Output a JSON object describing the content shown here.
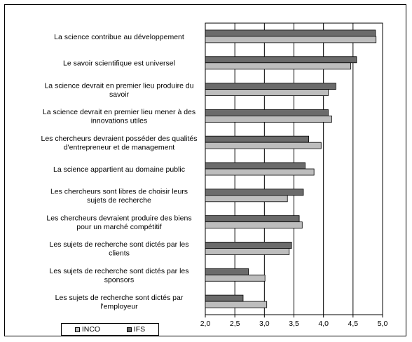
{
  "chart_data": {
    "type": "bar",
    "orientation": "horizontal",
    "categories": [
      "La science contribue au développement",
      "Le savoir scientifique est universel",
      "La science devrait en premier lieu produire du savoir",
      "La science devrait en premier lieu mener à des innovations utiles",
      "Les chercheurs devraient posséder des qualités d'entrepreneur et de management",
      "La science appartient au domaine public",
      "Les chercheurs sont libres de choisir leurs sujets de recherche",
      "Les chercheurs devraient produire des biens pour un marché compétitif",
      "Les sujets de recherche sont dictés par les clients",
      "Les sujets de recherche sont dictés par les sponsors",
      "Les sujets de recherche sont dictés par l'employeur"
    ],
    "category_lines": [
      [
        "La science contribue au développement"
      ],
      [
        "Le savoir scientifique est universel"
      ],
      [
        "La science devrait en premier lieu produire du",
        "savoir"
      ],
      [
        "La science devrait en premier lieu mener à des",
        "innovations utiles"
      ],
      [
        "Les chercheurs devraient posséder des qualités",
        "d'entrepreneur et de management"
      ],
      [
        "La science appartient au domaine public"
      ],
      [
        "Les chercheurs sont libres de choisir leurs",
        "sujets de recherche"
      ],
      [
        "Les chercheurs devraient produire des biens",
        "pour un marché compétitif"
      ],
      [
        "Les sujets de recherche sont dictés par les",
        "clients"
      ],
      [
        "Les sujets de recherche sont dictés par les",
        "sponsors"
      ],
      [
        "Les sujets de recherche sont dictés par",
        "l'employeur"
      ]
    ],
    "series": [
      {
        "name": "IFS",
        "color": "#6b6b6b",
        "values": [
          4.88,
          4.56,
          4.21,
          4.08,
          3.75,
          3.69,
          3.66,
          3.59,
          3.46,
          2.73,
          2.64
        ]
      },
      {
        "name": "INCO",
        "color": "#bdbdbd",
        "values": [
          4.89,
          4.46,
          4.08,
          4.14,
          3.96,
          3.84,
          3.39,
          3.64,
          3.42,
          3.01,
          3.04
        ]
      }
    ],
    "xlim": [
      2.0,
      5.0
    ],
    "xticks": [
      "2,0",
      "2,5",
      "3,0",
      "3,5",
      "4,0",
      "4,5",
      "5,0"
    ],
    "grid": "vertical",
    "legend": {
      "placement": "bottom-left",
      "entries": [
        "INCO",
        "IFS"
      ]
    }
  }
}
